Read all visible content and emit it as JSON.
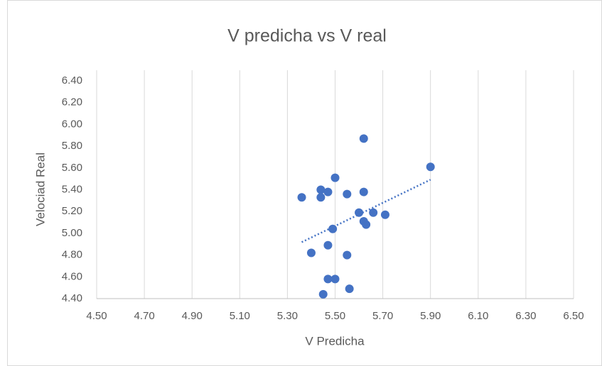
{
  "chart_data": {
    "type": "scatter",
    "title": "V predicha vs V real",
    "x_label": "V Predicha",
    "y_label": "Velociad Real",
    "color": "#4472c4",
    "grid": "x",
    "trendline": "linear",
    "x": [
      5.36,
      5.44,
      5.44,
      5.47,
      5.5,
      5.55,
      5.62,
      5.62,
      5.9,
      5.6,
      5.66,
      5.71,
      5.62,
      5.63,
      5.49,
      5.47,
      5.4,
      5.55,
      5.47,
      5.5,
      5.56,
      5.45
    ],
    "values": [
      5.33,
      5.4,
      5.33,
      5.38,
      5.51,
      5.36,
      5.87,
      5.38,
      5.61,
      5.19,
      5.19,
      5.17,
      5.11,
      5.08,
      5.04,
      4.89,
      4.82,
      4.8,
      4.58,
      4.58,
      4.49,
      4.44
    ],
    "xlim": [
      4.5,
      6.5
    ],
    "xticks": [
      {
        "value": 4.5,
        "label": "4.50"
      },
      {
        "value": 4.7,
        "label": "4.70"
      },
      {
        "value": 4.9,
        "label": "4.90"
      },
      {
        "value": 5.1,
        "label": "5.10"
      },
      {
        "value": 5.3,
        "label": "5.30"
      },
      {
        "value": 5.5,
        "label": "5.50"
      },
      {
        "value": 5.7,
        "label": "5.70"
      },
      {
        "value": 5.9,
        "label": "5.90"
      },
      {
        "value": 6.1,
        "label": "6.10"
      },
      {
        "value": 6.3,
        "label": "6.30"
      },
      {
        "value": 6.5,
        "label": "6.50"
      }
    ],
    "ylim": [
      4.4,
      6.4
    ],
    "yticks": [
      {
        "value": 4.4,
        "label": "4.40"
      },
      {
        "value": 4.6,
        "label": "4.60"
      },
      {
        "value": 4.8,
        "label": "4.80"
      },
      {
        "value": 5.0,
        "label": "5.00"
      },
      {
        "value": 5.2,
        "label": "5.20"
      },
      {
        "value": 5.4,
        "label": "5.40"
      },
      {
        "value": 5.6,
        "label": "5.60"
      },
      {
        "value": 5.8,
        "label": "5.80"
      },
      {
        "value": 6.0,
        "label": "6.00"
      },
      {
        "value": 6.2,
        "label": "6.20"
      },
      {
        "value": 6.4,
        "label": "6.40"
      }
    ]
  }
}
